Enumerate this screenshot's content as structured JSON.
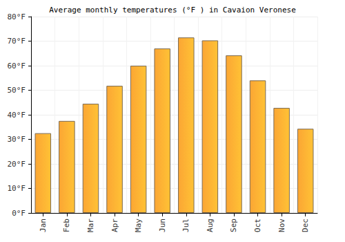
{
  "chart_data": {
    "type": "bar",
    "title": "Average monthly temperatures (°F ) in Cavaion Veronese",
    "categories": [
      "Jan",
      "Feb",
      "Mar",
      "Apr",
      "May",
      "Jun",
      "Jul",
      "Aug",
      "Sep",
      "Oct",
      "Nov",
      "Dec"
    ],
    "values": [
      32.5,
      37.5,
      44.5,
      51.8,
      60,
      67,
      71.5,
      70.3,
      64.2,
      54,
      42.8,
      34.3
    ],
    "color": "#fba634",
    "ylim": [
      0,
      80
    ],
    "yticks": [
      {
        "value": 0,
        "label": "0°F"
      },
      {
        "value": 10,
        "label": "10°F"
      },
      {
        "value": 20,
        "label": "20°F"
      },
      {
        "value": 30,
        "label": "30°F"
      },
      {
        "value": 40,
        "label": "40°F"
      },
      {
        "value": 50,
        "label": "50°F"
      },
      {
        "value": 60,
        "label": "60°F"
      },
      {
        "value": 70,
        "label": "70°F"
      },
      {
        "value": 80,
        "label": "80°F"
      }
    ],
    "grid": true
  }
}
